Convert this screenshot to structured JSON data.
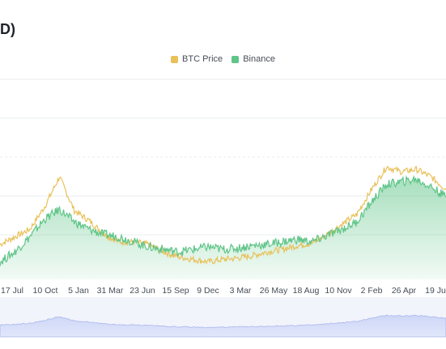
{
  "title": "D)",
  "colors": {
    "btc": "#e8c15a",
    "binance": "#5fc588",
    "navigator": "#c9d3f5"
  },
  "legend": [
    {
      "name": "BTC Price",
      "color": "#e8c15a"
    },
    {
      "name": "Binance",
      "color": "#5fc588"
    }
  ],
  "chart_data": {
    "type": "line",
    "title": "D)",
    "xlabel": "",
    "ylabel": "",
    "grid": true,
    "legend_position": "top",
    "x_ticks": [
      "17 Jul",
      "10 Oct",
      "5 Jan",
      "31 Mar",
      "23 Jun",
      "15 Sep",
      "9 Dec",
      "3 Mar",
      "26 May",
      "18 Aug",
      "10 Nov",
      "2 Feb",
      "26 Apr",
      "19 Ju"
    ],
    "series": [
      {
        "name": "BTC Price",
        "values": [
          0.28,
          0.34,
          0.4,
          0.58,
          0.82,
          0.55,
          0.47,
          0.36,
          0.3,
          0.3,
          0.28,
          0.22,
          0.18,
          0.16,
          0.14,
          0.16,
          0.17,
          0.19,
          0.22,
          0.24,
          0.27,
          0.29,
          0.36,
          0.44,
          0.52,
          0.72,
          0.9,
          0.86,
          0.88,
          0.82,
          0.72
        ]
      },
      {
        "name": "Binance",
        "values": [
          0.14,
          0.22,
          0.34,
          0.48,
          0.56,
          0.46,
          0.4,
          0.36,
          0.34,
          0.3,
          0.26,
          0.24,
          0.22,
          0.24,
          0.26,
          0.24,
          0.25,
          0.27,
          0.28,
          0.3,
          0.32,
          0.3,
          0.35,
          0.4,
          0.46,
          0.62,
          0.76,
          0.78,
          0.8,
          0.74,
          0.66
        ]
      }
    ],
    "ylim": [
      0,
      1.6
    ]
  }
}
